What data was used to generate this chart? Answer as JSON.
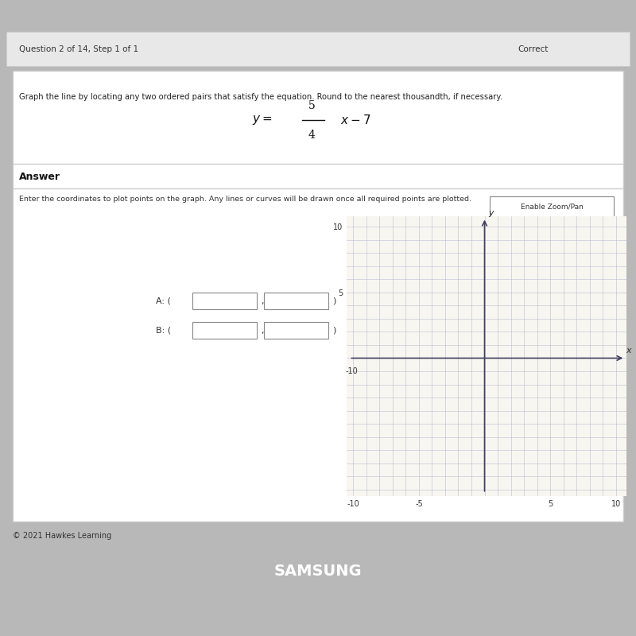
{
  "bg_color": "#b8b8b8",
  "page_bg": "#ffffff",
  "teal_bar": "#6bb8b8",
  "question_text": "Question 2 of 14, Step 1 of 1",
  "correct_text": "Correct",
  "instruction_text": "Graph the line by locating any two ordered pairs that satisfy the equation. Round to the nearest thousandth, if necessary.",
  "answer_label": "Answer",
  "enter_coords_text": "Enter the coordinates to plot points on the graph. Any lines or curves will be drawn once all required points are plotted.",
  "enable_zoom_btn": "Enable Zoom/Pan",
  "label_A": "A: (",
  "label_B": "B: (",
  "axis_min": -10,
  "axis_max": 10,
  "grid_color": "#b0b8d0",
  "axis_color": "#404060",
  "axis_label_x": "x",
  "axis_label_y": "y",
  "copyright_text": "© 2021 Hawkes Learning",
  "samsung_text": "SAMSUNG"
}
